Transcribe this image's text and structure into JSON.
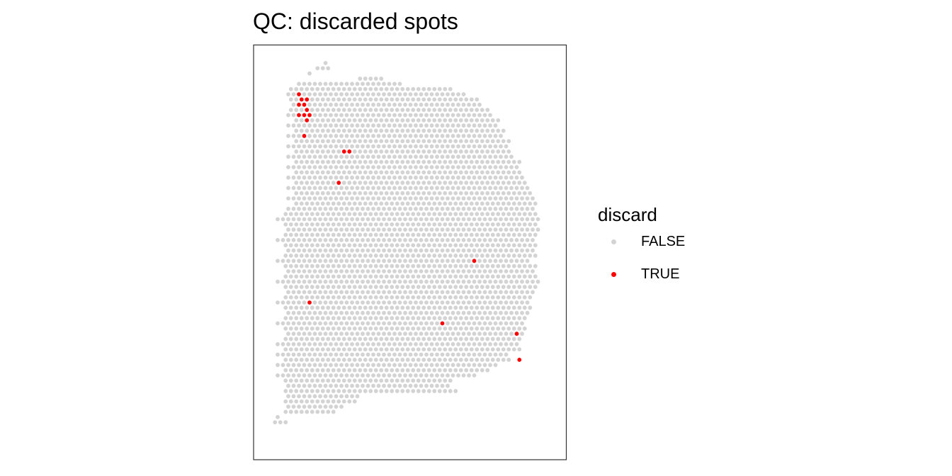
{
  "chart_data": {
    "type": "scatter",
    "title": "QC: discarded spots",
    "xlabel": "",
    "ylabel": "",
    "grid": false,
    "axes_shown": false,
    "legend": {
      "title": "discard",
      "placement": "right",
      "entries": [
        {
          "label": "FALSE",
          "color": "#d3d3d3"
        },
        {
          "label": "TRUE",
          "color": "#ff0000"
        }
      ]
    },
    "colors": {
      "FALSE": "#d3d3d3",
      "TRUE": "#ff0000"
    },
    "array_grid": {
      "columns": 53,
      "rows": 70,
      "row_extents": [
        [
          11,
          11
        ],
        [
          9,
          11
        ],
        [
          8,
          8
        ],
        [
          17,
          21
        ],
        [
          6,
          25
        ],
        [
          4,
          34
        ],
        [
          4,
          37
        ],
        [
          4,
          39
        ],
        [
          5,
          40
        ],
        [
          4,
          41
        ],
        [
          4,
          42
        ],
        [
          5,
          43
        ],
        [
          4,
          43
        ],
        [
          5,
          44
        ],
        [
          4,
          44
        ],
        [
          5,
          45
        ],
        [
          4,
          45
        ],
        [
          5,
          45
        ],
        [
          4,
          46
        ],
        [
          5,
          47
        ],
        [
          4,
          47
        ],
        [
          5,
          47
        ],
        [
          4,
          48
        ],
        [
          5,
          48
        ],
        [
          4,
          49
        ],
        [
          5,
          49
        ],
        [
          4,
          50
        ],
        [
          5,
          50
        ],
        [
          4,
          50
        ],
        [
          3,
          50
        ],
        [
          2,
          51
        ],
        [
          3,
          50
        ],
        [
          4,
          51
        ],
        [
          3,
          50
        ],
        [
          2,
          50
        ],
        [
          3,
          50
        ],
        [
          4,
          50
        ],
        [
          3,
          50
        ],
        [
          2,
          49
        ],
        [
          3,
          50
        ],
        [
          4,
          50
        ],
        [
          3,
          50
        ],
        [
          2,
          51
        ],
        [
          3,
          50
        ],
        [
          4,
          50
        ],
        [
          3,
          49
        ],
        [
          2,
          49
        ],
        [
          3,
          49
        ],
        [
          4,
          49
        ],
        [
          3,
          48
        ],
        [
          2,
          48
        ],
        [
          3,
          48
        ],
        [
          4,
          48
        ],
        [
          3,
          47
        ],
        [
          2,
          47
        ],
        [
          3,
          47
        ],
        [
          2,
          45
        ],
        [
          3,
          45
        ],
        [
          2,
          43
        ],
        [
          3,
          41
        ],
        [
          2,
          39
        ],
        [
          3,
          34
        ],
        [
          4,
          34
        ],
        [
          3,
          35
        ],
        [
          4,
          17
        ],
        [
          3,
          16
        ],
        [
          4,
          14
        ],
        [
          3,
          12
        ],
        [
          2,
          2
        ],
        [
          1,
          3
        ]
      ],
      "discarded_spots": [
        [
          6,
          6
        ],
        [
          6,
          7
        ],
        [
          7,
          7
        ],
        [
          6,
          8
        ],
        [
          7,
          8
        ],
        [
          7,
          9
        ],
        [
          6,
          10
        ],
        [
          7,
          10
        ],
        [
          8,
          10
        ],
        [
          7,
          11
        ],
        [
          7,
          14
        ],
        [
          14,
          17
        ],
        [
          15,
          17
        ],
        [
          13,
          23
        ],
        [
          39,
          38
        ],
        [
          8,
          46
        ],
        [
          33,
          50
        ],
        [
          47,
          52
        ],
        [
          47,
          57
        ]
      ]
    }
  }
}
